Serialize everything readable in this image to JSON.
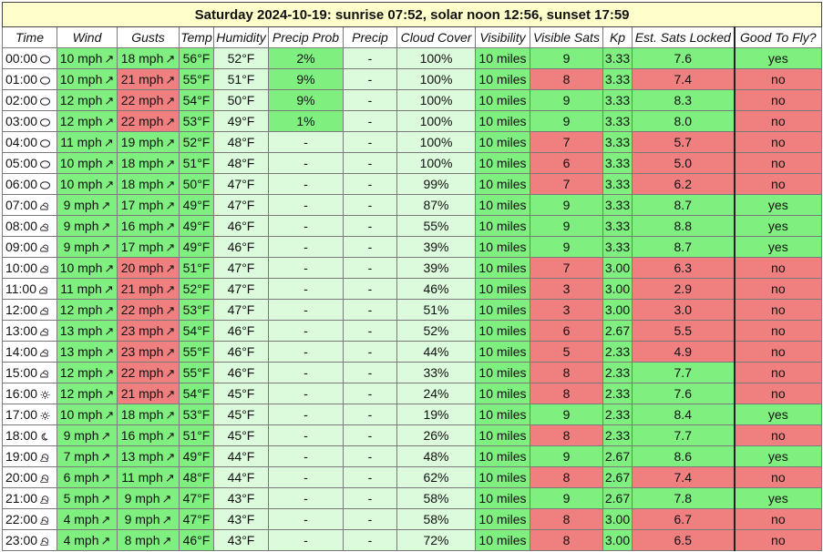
{
  "title": "Saturday 2024-10-19: sunrise 07:52, solar noon 12:56, sunset 17:59",
  "colors": {
    "good": "#7ff07f",
    "bad": "#f08080",
    "neutral": "#dcfadc",
    "title_bg": "#ffffcc"
  },
  "headers": [
    "Time",
    "Wind",
    "Gusts",
    "Temp",
    "Humidity",
    "Precip Prob",
    "Precip",
    "Cloud Cover",
    "Visibility",
    "Visible Sats",
    "Kp",
    "Est. Sats Locked",
    "Good To Fly?"
  ],
  "rows": [
    {
      "time": "00:00",
      "icon": "moon-icon",
      "wind": "10 mph",
      "gusts": "18 mph",
      "temp": "56°F",
      "humidity": "52°F",
      "pp": "2%",
      "precip": "-",
      "cloud": "100%",
      "vis": "10 miles",
      "sats": "9",
      "kp": "3.33",
      "locked": "7.6",
      "fly": "yes"
    },
    {
      "time": "01:00",
      "icon": "moon-icon",
      "wind": "10 mph",
      "gusts": "21 mph",
      "temp": "55°F",
      "humidity": "51°F",
      "pp": "9%",
      "precip": "-",
      "cloud": "100%",
      "vis": "10 miles",
      "sats": "8",
      "kp": "3.33",
      "locked": "7.4",
      "fly": "no"
    },
    {
      "time": "02:00",
      "icon": "moon-icon",
      "wind": "12 mph",
      "gusts": "22 mph",
      "temp": "54°F",
      "humidity": "50°F",
      "pp": "9%",
      "precip": "-",
      "cloud": "100%",
      "vis": "10 miles",
      "sats": "9",
      "kp": "3.33",
      "locked": "8.3",
      "fly": "no"
    },
    {
      "time": "03:00",
      "icon": "moon-icon",
      "wind": "12 mph",
      "gusts": "22 mph",
      "temp": "53°F",
      "humidity": "49°F",
      "pp": "1%",
      "precip": "-",
      "cloud": "100%",
      "vis": "10 miles",
      "sats": "9",
      "kp": "3.33",
      "locked": "8.0",
      "fly": "no"
    },
    {
      "time": "04:00",
      "icon": "moon-icon",
      "wind": "11 mph",
      "gusts": "19 mph",
      "temp": "52°F",
      "humidity": "48°F",
      "pp": "-",
      "precip": "-",
      "cloud": "100%",
      "vis": "10 miles",
      "sats": "7",
      "kp": "3.33",
      "locked": "5.7",
      "fly": "no"
    },
    {
      "time": "05:00",
      "icon": "moon-icon",
      "wind": "10 mph",
      "gusts": "18 mph",
      "temp": "51°F",
      "humidity": "48°F",
      "pp": "-",
      "precip": "-",
      "cloud": "100%",
      "vis": "10 miles",
      "sats": "6",
      "kp": "3.33",
      "locked": "5.0",
      "fly": "no"
    },
    {
      "time": "06:00",
      "icon": "moon-icon",
      "wind": "10 mph",
      "gusts": "18 mph",
      "temp": "50°F",
      "humidity": "47°F",
      "pp": "-",
      "precip": "-",
      "cloud": "99%",
      "vis": "10 miles",
      "sats": "7",
      "kp": "3.33",
      "locked": "6.2",
      "fly": "no"
    },
    {
      "time": "07:00",
      "icon": "sun-cloud-icon",
      "wind": "9 mph",
      "gusts": "17 mph",
      "temp": "49°F",
      "humidity": "47°F",
      "pp": "-",
      "precip": "-",
      "cloud": "87%",
      "vis": "10 miles",
      "sats": "9",
      "kp": "3.33",
      "locked": "8.7",
      "fly": "yes"
    },
    {
      "time": "08:00",
      "icon": "sun-cloud-icon",
      "wind": "9 mph",
      "gusts": "16 mph",
      "temp": "49°F",
      "humidity": "46°F",
      "pp": "-",
      "precip": "-",
      "cloud": "55%",
      "vis": "10 miles",
      "sats": "9",
      "kp": "3.33",
      "locked": "8.8",
      "fly": "yes"
    },
    {
      "time": "09:00",
      "icon": "sun-cloud-icon",
      "wind": "9 mph",
      "gusts": "17 mph",
      "temp": "49°F",
      "humidity": "46°F",
      "pp": "-",
      "precip": "-",
      "cloud": "39%",
      "vis": "10 miles",
      "sats": "9",
      "kp": "3.33",
      "locked": "8.7",
      "fly": "yes"
    },
    {
      "time": "10:00",
      "icon": "sun-cloud-icon",
      "wind": "10 mph",
      "gusts": "20 mph",
      "temp": "51°F",
      "humidity": "47°F",
      "pp": "-",
      "precip": "-",
      "cloud": "39%",
      "vis": "10 miles",
      "sats": "7",
      "kp": "3.00",
      "locked": "6.3",
      "fly": "no"
    },
    {
      "time": "11:00",
      "icon": "sun-cloud-icon",
      "wind": "11 mph",
      "gusts": "21 mph",
      "temp": "52°F",
      "humidity": "47°F",
      "pp": "-",
      "precip": "-",
      "cloud": "46%",
      "vis": "10 miles",
      "sats": "3",
      "kp": "3.00",
      "locked": "2.9",
      "fly": "no"
    },
    {
      "time": "12:00",
      "icon": "sun-cloud-icon",
      "wind": "12 mph",
      "gusts": "22 mph",
      "temp": "53°F",
      "humidity": "47°F",
      "pp": "-",
      "precip": "-",
      "cloud": "51%",
      "vis": "10 miles",
      "sats": "3",
      "kp": "3.00",
      "locked": "3.0",
      "fly": "no"
    },
    {
      "time": "13:00",
      "icon": "sun-cloud-icon",
      "wind": "13 mph",
      "gusts": "23 mph",
      "temp": "54°F",
      "humidity": "46°F",
      "pp": "-",
      "precip": "-",
      "cloud": "52%",
      "vis": "10 miles",
      "sats": "6",
      "kp": "2.67",
      "locked": "5.5",
      "fly": "no"
    },
    {
      "time": "14:00",
      "icon": "sun-cloud-icon",
      "wind": "13 mph",
      "gusts": "23 mph",
      "temp": "55°F",
      "humidity": "46°F",
      "pp": "-",
      "precip": "-",
      "cloud": "44%",
      "vis": "10 miles",
      "sats": "5",
      "kp": "2.33",
      "locked": "4.9",
      "fly": "no"
    },
    {
      "time": "15:00",
      "icon": "sun-cloud-icon",
      "wind": "12 mph",
      "gusts": "22 mph",
      "temp": "55°F",
      "humidity": "46°F",
      "pp": "-",
      "precip": "-",
      "cloud": "33%",
      "vis": "10 miles",
      "sats": "8",
      "kp": "2.33",
      "locked": "7.7",
      "fly": "no"
    },
    {
      "time": "16:00",
      "icon": "sun-icon",
      "wind": "12 mph",
      "gusts": "21 mph",
      "temp": "54°F",
      "humidity": "45°F",
      "pp": "-",
      "precip": "-",
      "cloud": "24%",
      "vis": "10 miles",
      "sats": "8",
      "kp": "2.33",
      "locked": "7.6",
      "fly": "no"
    },
    {
      "time": "17:00",
      "icon": "sun-icon",
      "wind": "10 mph",
      "gusts": "18 mph",
      "temp": "53°F",
      "humidity": "45°F",
      "pp": "-",
      "precip": "-",
      "cloud": "19%",
      "vis": "10 miles",
      "sats": "9",
      "kp": "2.33",
      "locked": "8.4",
      "fly": "yes"
    },
    {
      "time": "18:00",
      "icon": "crescent-moon-icon",
      "wind": "9 mph",
      "gusts": "16 mph",
      "temp": "51°F",
      "humidity": "45°F",
      "pp": "-",
      "precip": "-",
      "cloud": "26%",
      "vis": "10 miles",
      "sats": "8",
      "kp": "2.33",
      "locked": "7.7",
      "fly": "no"
    },
    {
      "time": "19:00",
      "icon": "moon-cloud-icon",
      "wind": "7 mph",
      "gusts": "13 mph",
      "temp": "49°F",
      "humidity": "44°F",
      "pp": "-",
      "precip": "-",
      "cloud": "48%",
      "vis": "10 miles",
      "sats": "9",
      "kp": "2.67",
      "locked": "8.6",
      "fly": "yes"
    },
    {
      "time": "20:00",
      "icon": "moon-cloud-icon",
      "wind": "6 mph",
      "gusts": "11 mph",
      "temp": "48°F",
      "humidity": "44°F",
      "pp": "-",
      "precip": "-",
      "cloud": "62%",
      "vis": "10 miles",
      "sats": "8",
      "kp": "2.67",
      "locked": "7.4",
      "fly": "no"
    },
    {
      "time": "21:00",
      "icon": "moon-cloud-icon",
      "wind": "5 mph",
      "gusts": "9 mph",
      "temp": "47°F",
      "humidity": "43°F",
      "pp": "-",
      "precip": "-",
      "cloud": "58%",
      "vis": "10 miles",
      "sats": "9",
      "kp": "2.67",
      "locked": "7.8",
      "fly": "yes"
    },
    {
      "time": "22:00",
      "icon": "moon-cloud-icon",
      "wind": "4 mph",
      "gusts": "9 mph",
      "temp": "47°F",
      "humidity": "43°F",
      "pp": "-",
      "precip": "-",
      "cloud": "58%",
      "vis": "10 miles",
      "sats": "8",
      "kp": "3.00",
      "locked": "6.7",
      "fly": "no"
    },
    {
      "time": "23:00",
      "icon": "moon-cloud-icon",
      "wind": "4 mph",
      "gusts": "8 mph",
      "temp": "46°F",
      "humidity": "43°F",
      "pp": "-",
      "precip": "-",
      "cloud": "72%",
      "vis": "10 miles",
      "sats": "8",
      "kp": "3.00",
      "locked": "6.5",
      "fly": "no"
    }
  ]
}
